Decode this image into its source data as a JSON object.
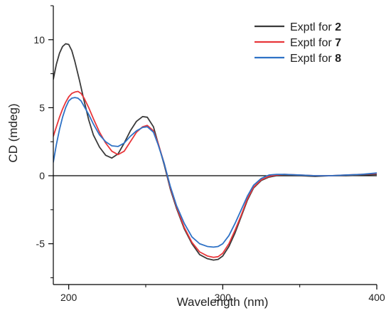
{
  "chart_data": {
    "type": "line",
    "xlabel": "Wavelength (nm)",
    "ylabel": "CD (mdeg)",
    "xlim": [
      190,
      400
    ],
    "ylim": [
      -8,
      12.5
    ],
    "xticks": [
      {
        "value": 200,
        "label": "200"
      },
      {
        "value": 300,
        "label": "300"
      },
      {
        "value": 400,
        "label": "400"
      }
    ],
    "yticks": [
      {
        "value": 10,
        "label": "10"
      },
      {
        "value": 5,
        "label": "5"
      },
      {
        "value": 0,
        "label": "0"
      },
      {
        "value": -5,
        "label": "-5"
      }
    ],
    "zero_line": true,
    "legend_position": "top-right",
    "series": [
      {
        "name": "Exptl for 2",
        "label_prefix": "Exptl for ",
        "label_number": "2",
        "color": "#3a3a3a",
        "x": [
          190,
          192,
          194,
          196,
          198,
          200,
          202,
          204,
          207,
          210,
          213,
          216,
          220,
          224,
          228,
          232,
          236,
          240,
          244,
          248,
          251,
          255,
          258,
          262,
          266,
          270,
          275,
          280,
          285,
          290,
          294,
          297,
          300,
          304,
          308,
          312,
          316,
          320,
          325,
          330,
          335,
          340,
          350,
          360,
          370,
          380,
          390,
          400
        ],
        "y": [
          7.1,
          8.2,
          9.0,
          9.5,
          9.7,
          9.65,
          9.2,
          8.4,
          7.0,
          5.5,
          4.1,
          3.0,
          2.1,
          1.5,
          1.3,
          1.6,
          2.4,
          3.3,
          4.0,
          4.35,
          4.3,
          3.6,
          2.4,
          0.8,
          -1.0,
          -2.4,
          -3.9,
          -5.0,
          -5.8,
          -6.1,
          -6.2,
          -6.15,
          -5.9,
          -5.2,
          -4.2,
          -3.0,
          -1.8,
          -0.9,
          -0.35,
          -0.1,
          0.0,
          0.0,
          0.0,
          -0.05,
          0.0,
          0.0,
          0.05,
          0.1
        ]
      },
      {
        "name": "Exptl for 7",
        "label_prefix": "Exptl for ",
        "label_number": "7",
        "color": "#e8363a",
        "x": [
          190,
          192,
          194,
          196,
          198,
          200,
          202,
          204,
          206,
          208,
          210,
          213,
          216,
          220,
          224,
          228,
          232,
          236,
          240,
          244,
          248,
          251,
          255,
          258,
          262,
          266,
          270,
          275,
          280,
          285,
          290,
          294,
          297,
          300,
          304,
          308,
          312,
          316,
          320,
          325,
          330,
          335,
          340,
          350,
          360,
          370,
          380,
          390,
          400
        ],
        "y": [
          2.9,
          3.6,
          4.3,
          4.9,
          5.4,
          5.8,
          6.05,
          6.15,
          6.2,
          6.05,
          5.7,
          5.0,
          4.2,
          3.2,
          2.4,
          1.8,
          1.55,
          1.8,
          2.5,
          3.2,
          3.6,
          3.7,
          3.3,
          2.4,
          0.9,
          -0.9,
          -2.3,
          -3.8,
          -4.9,
          -5.6,
          -5.9,
          -6.0,
          -5.95,
          -5.7,
          -5.0,
          -4.0,
          -2.9,
          -1.7,
          -0.85,
          -0.3,
          -0.05,
          0.05,
          0.1,
          0.05,
          0.0,
          0.0,
          0.05,
          0.1,
          0.15
        ]
      },
      {
        "name": "Exptl for 8",
        "label_prefix": "Exptl for ",
        "label_number": "8",
        "color": "#2e72c6",
        "x": [
          190,
          192,
          194,
          196,
          198,
          200,
          202,
          204,
          206,
          208,
          210,
          213,
          216,
          220,
          224,
          228,
          232,
          236,
          240,
          244,
          248,
          251,
          255,
          258,
          262,
          266,
          270,
          275,
          280,
          285,
          290,
          294,
          297,
          300,
          304,
          308,
          312,
          316,
          320,
          325,
          330,
          335,
          340,
          350,
          360,
          370,
          380,
          390,
          400
        ],
        "y": [
          1.0,
          2.3,
          3.4,
          4.3,
          5.0,
          5.5,
          5.7,
          5.75,
          5.7,
          5.5,
          5.1,
          4.5,
          3.8,
          3.0,
          2.5,
          2.2,
          2.15,
          2.4,
          2.9,
          3.3,
          3.55,
          3.6,
          3.2,
          2.3,
          0.9,
          -0.8,
          -2.2,
          -3.5,
          -4.5,
          -5.0,
          -5.2,
          -5.25,
          -5.2,
          -5.0,
          -4.4,
          -3.5,
          -2.5,
          -1.5,
          -0.7,
          -0.2,
          0.05,
          0.1,
          0.1,
          0.05,
          0.0,
          0.0,
          0.05,
          0.1,
          0.2
        ]
      }
    ]
  }
}
